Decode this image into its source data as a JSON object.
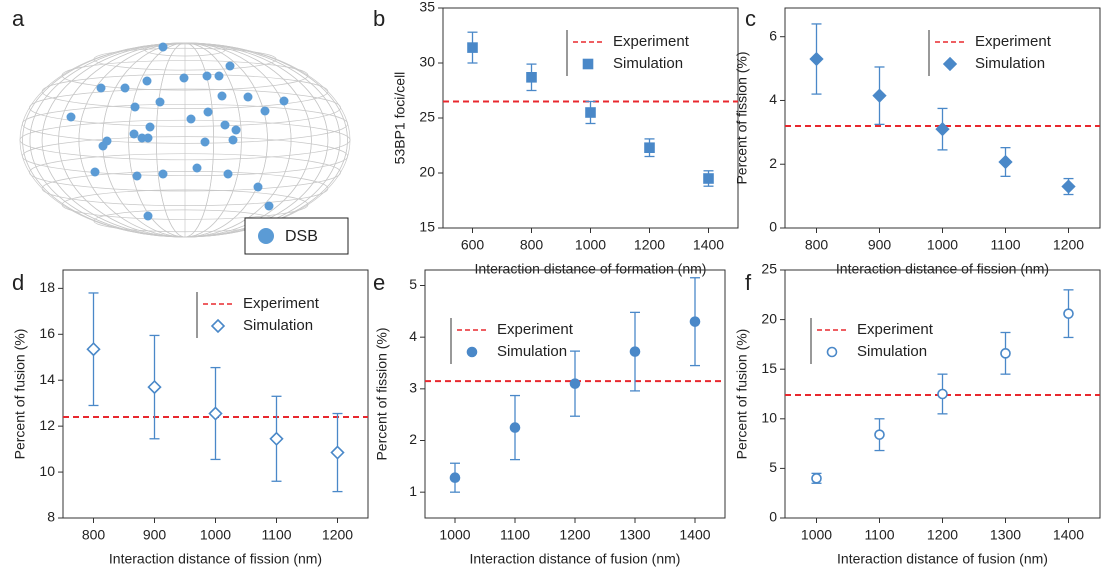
{
  "chart_data": [
    {
      "type": "sphere",
      "label": "a",
      "legend": "DSB",
      "color": "#5b9bd5"
    },
    {
      "type": "errorbar",
      "label": "b",
      "xlabel": "Interaction distance of formation (nm)",
      "ylabel": "53BP1 foci/cell",
      "x": [
        600,
        800,
        1000,
        1200,
        1400
      ],
      "xlim": [
        500,
        1500
      ],
      "xticks": [
        600,
        800,
        1000,
        1200,
        1400
      ],
      "ylim": [
        15,
        35
      ],
      "yticks": [
        15,
        20,
        25,
        30,
        35
      ],
      "legend": "upper right",
      "reference": {
        "name": "Experiment",
        "value": 26.5,
        "color": "#e8282e"
      },
      "series": [
        {
          "name": "Simulation",
          "color": "#4a88c8",
          "marker": "square",
          "filled": true,
          "values": [
            31.4,
            28.7,
            25.5,
            22.3,
            19.5
          ],
          "errors": [
            1.4,
            1.2,
            1.0,
            0.8,
            0.7
          ]
        }
      ]
    },
    {
      "type": "errorbar",
      "label": "c",
      "xlabel": "Interaction distance of fission (nm)",
      "ylabel": "Percent of fission (%)",
      "x": [
        800,
        900,
        1000,
        1100,
        1200
      ],
      "xlim": [
        750,
        1250
      ],
      "xticks": [
        800,
        900,
        1000,
        1100,
        1200
      ],
      "ylim": [
        0,
        6.9
      ],
      "yticks": [
        0,
        2,
        4,
        6
      ],
      "legend": "upper right",
      "reference": {
        "name": "Experiment",
        "value": 3.2,
        "color": "#e8282e"
      },
      "series": [
        {
          "name": "Simulation",
          "color": "#4a88c8",
          "marker": "diamond",
          "filled": true,
          "values": [
            5.3,
            4.15,
            3.1,
            2.07,
            1.3
          ],
          "errors": [
            1.1,
            0.9,
            0.65,
            0.45,
            0.25
          ]
        }
      ]
    },
    {
      "type": "errorbar",
      "label": "d",
      "xlabel": "Interaction distance of fission (nm)",
      "ylabel": "Percent of fusion (%)",
      "x": [
        800,
        900,
        1000,
        1100,
        1200
      ],
      "xlim": [
        750,
        1250
      ],
      "xticks": [
        800,
        900,
        1000,
        1100,
        1200
      ],
      "ylim": [
        8,
        18.8
      ],
      "yticks": [
        8,
        10,
        12,
        14,
        16,
        18
      ],
      "legend": "upper right",
      "reference": {
        "name": "Experiment",
        "value": 12.4,
        "color": "#e8282e"
      },
      "series": [
        {
          "name": "Simulation",
          "color": "#4a88c8",
          "marker": "diamond",
          "filled": false,
          "values": [
            15.35,
            13.7,
            12.55,
            11.45,
            10.85
          ],
          "errors": [
            2.45,
            2.25,
            2.0,
            1.85,
            1.7
          ]
        }
      ]
    },
    {
      "type": "errorbar",
      "label": "e",
      "xlabel": "Interaction distance of fusion (nm)",
      "ylabel": "Percent of fission (%)",
      "x": [
        1000,
        1100,
        1200,
        1300,
        1400
      ],
      "xlim": [
        950,
        1450
      ],
      "xticks": [
        1000,
        1100,
        1200,
        1300,
        1400
      ],
      "ylim": [
        0.5,
        5.3
      ],
      "yticks": [
        1,
        2,
        3,
        4,
        5
      ],
      "legend": "upper left",
      "reference": {
        "name": "Experiment",
        "value": 3.15,
        "color": "#e8282e"
      },
      "series": [
        {
          "name": "Simulation",
          "color": "#4a88c8",
          "marker": "circle",
          "filled": true,
          "values": [
            1.28,
            2.25,
            3.1,
            3.72,
            4.3
          ],
          "errors": [
            0.28,
            0.62,
            0.63,
            0.76,
            0.85
          ]
        }
      ]
    },
    {
      "type": "errorbar",
      "label": "f",
      "xlabel": "Interaction distance of fusion (nm)",
      "ylabel": "Percent of fusion (%)",
      "x": [
        1000,
        1100,
        1200,
        1300,
        1400
      ],
      "xlim": [
        950,
        1450
      ],
      "xticks": [
        1000,
        1100,
        1200,
        1300,
        1400
      ],
      "ylim": [
        0,
        25
      ],
      "yticks": [
        0,
        5,
        10,
        15,
        20,
        25
      ],
      "legend": "upper left",
      "reference": {
        "name": "Experiment",
        "value": 12.4,
        "color": "#e8282e"
      },
      "series": [
        {
          "name": "Simulation",
          "color": "#4a88c8",
          "marker": "circle",
          "filled": false,
          "values": [
            4.0,
            8.4,
            12.5,
            16.6,
            20.6
          ],
          "errors": [
            0.5,
            1.6,
            2.0,
            2.1,
            2.4
          ]
        }
      ]
    }
  ]
}
